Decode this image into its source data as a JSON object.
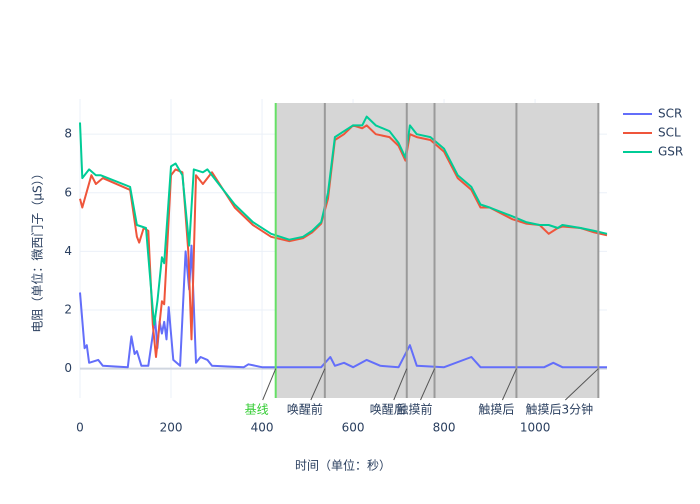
{
  "chart_data": {
    "type": "line",
    "x_label": "时间（单位：秒）",
    "y_label": "电阻（单位：微西门子（μS））",
    "xlim": [
      0,
      1158
    ],
    "ylim": [
      -1,
      9.2
    ],
    "xticks": [
      0,
      200,
      400,
      600,
      800,
      1000
    ],
    "yticks": [
      0,
      2,
      4,
      6,
      8
    ],
    "grid": true,
    "legend": "top-right",
    "shade": [
      430,
      1139
    ],
    "shade_color": "#d6d6d6",
    "markers": [
      {
        "x": 430,
        "label": "基线",
        "color": "#66e066"
      },
      {
        "x": 538,
        "label": "唤醒前",
        "color": "#9a9a9a"
      },
      {
        "x": 718,
        "label": "唤醒后",
        "color": "#9a9a9a"
      },
      {
        "x": 779,
        "label": "触摸前",
        "color": "#9a9a9a"
      },
      {
        "x": 959,
        "label": "触摸后",
        "color": "#9a9a9a"
      },
      {
        "x": 1139,
        "label": "触摸后3分钟",
        "color": "#9a9a9a"
      }
    ],
    "series": [
      {
        "name": "SCR",
        "color": "#636efa",
        "x": [
          0,
          10,
          15,
          20,
          40,
          50,
          105,
          113,
          120,
          125,
          135,
          150,
          165,
          170,
          175,
          180,
          185,
          190,
          195,
          205,
          220,
          232,
          240,
          245,
          255,
          265,
          280,
          290,
          360,
          370,
          400,
          530,
          550,
          560,
          580,
          600,
          630,
          660,
          700,
          725,
          740,
          800,
          860,
          880,
          1020,
          1040,
          1060,
          1158
        ],
        "values": [
          2.6,
          0.7,
          0.8,
          0.2,
          0.3,
          0.1,
          0.05,
          1.1,
          0.5,
          0.6,
          0.1,
          0.1,
          1.7,
          0.7,
          1.6,
          1.2,
          1.6,
          1.0,
          2.1,
          0.3,
          0.1,
          4.0,
          2.7,
          4.2,
          0.2,
          0.4,
          0.3,
          0.1,
          0.05,
          0.15,
          0.05,
          0.05,
          0.4,
          0.1,
          0.2,
          0.05,
          0.3,
          0.1,
          0.05,
          0.8,
          0.1,
          0.05,
          0.4,
          0.05,
          0.05,
          0.2,
          0.05,
          0.05
        ]
      },
      {
        "name": "SCL",
        "color": "#ef553b",
        "x": [
          0,
          5,
          25,
          35,
          50,
          110,
          125,
          130,
          140,
          150,
          160,
          167,
          180,
          185,
          200,
          210,
          225,
          238,
          245,
          255,
          270,
          290,
          340,
          380,
          420,
          460,
          490,
          510,
          530,
          545,
          560,
          580,
          600,
          620,
          630,
          650,
          680,
          700,
          715,
          725,
          740,
          770,
          800,
          830,
          860,
          880,
          900,
          950,
          980,
          1010,
          1030,
          1050,
          1060,
          1100,
          1130,
          1158
        ],
        "values": [
          5.8,
          5.5,
          6.6,
          6.3,
          6.5,
          6.1,
          4.5,
          4.3,
          4.8,
          4.7,
          1.5,
          0.4,
          2.3,
          2.2,
          6.6,
          6.8,
          6.7,
          4.0,
          1.0,
          6.6,
          6.3,
          6.7,
          5.5,
          4.9,
          4.5,
          4.35,
          4.45,
          4.65,
          4.95,
          5.8,
          7.8,
          8.0,
          8.3,
          8.2,
          8.3,
          8.0,
          7.9,
          7.6,
          7.1,
          8.0,
          7.9,
          7.8,
          7.4,
          6.5,
          6.1,
          5.5,
          5.5,
          5.1,
          4.95,
          4.9,
          4.6,
          4.8,
          4.85,
          4.8,
          4.65,
          4.55
        ]
      },
      {
        "name": "GSR",
        "color": "#00cc96",
        "x": [
          0,
          5,
          20,
          35,
          45,
          110,
          125,
          145,
          160,
          163,
          170,
          180,
          185,
          200,
          210,
          225,
          240,
          250,
          270,
          280,
          300,
          340,
          380,
          420,
          460,
          490,
          510,
          530,
          545,
          560,
          580,
          600,
          620,
          630,
          650,
          680,
          700,
          715,
          725,
          740,
          770,
          800,
          830,
          860,
          880,
          900,
          950,
          980,
          1010,
          1030,
          1050,
          1060,
          1100,
          1130,
          1158
        ],
        "values": [
          8.4,
          6.5,
          6.8,
          6.6,
          6.6,
          6.2,
          4.9,
          4.8,
          2.0,
          1.5,
          2.3,
          3.8,
          3.6,
          6.9,
          7.0,
          6.6,
          4.2,
          6.8,
          6.7,
          6.8,
          6.4,
          5.6,
          5.0,
          4.6,
          4.4,
          4.5,
          4.7,
          5.0,
          6.0,
          7.9,
          8.1,
          8.3,
          8.3,
          8.6,
          8.3,
          8.1,
          7.7,
          7.2,
          8.3,
          8.0,
          7.9,
          7.5,
          6.6,
          6.2,
          5.6,
          5.5,
          5.2,
          5.0,
          4.9,
          4.9,
          4.8,
          4.9,
          4.8,
          4.7,
          4.6
        ]
      }
    ]
  }
}
